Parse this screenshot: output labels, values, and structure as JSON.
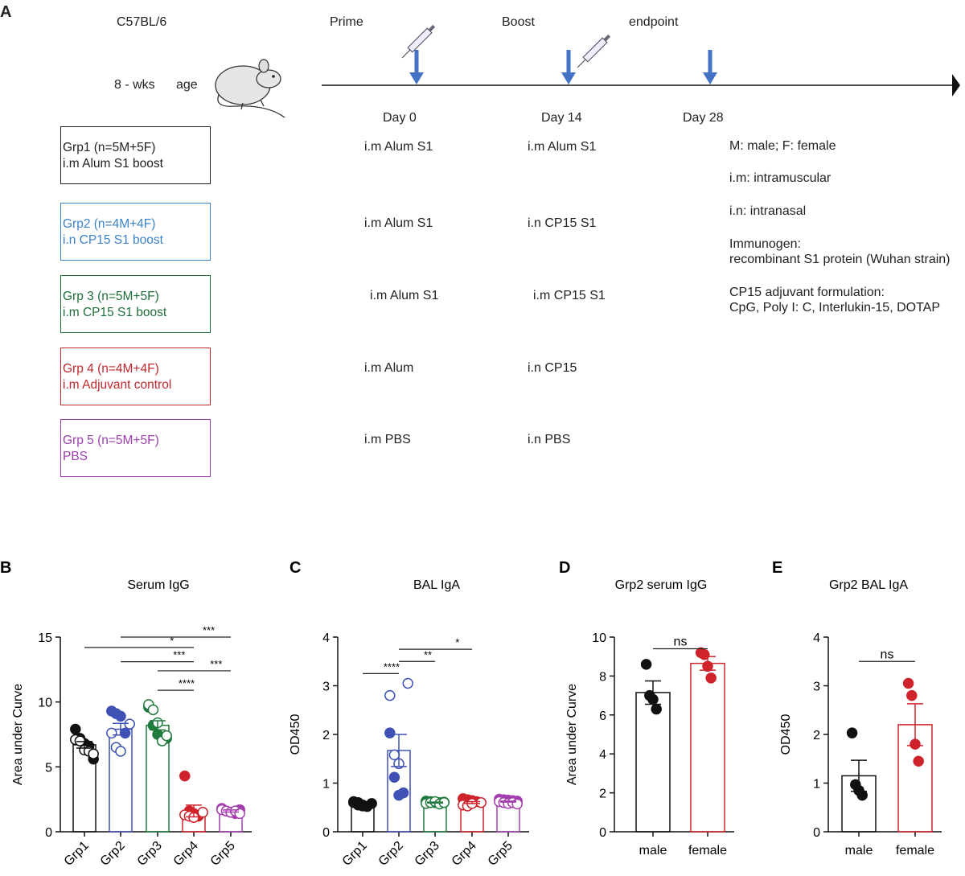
{
  "panel_a": {
    "letter": "A",
    "strain": "C57BL/6",
    "age": "8 - wks",
    "age_unit": "age",
    "prime": "Prime",
    "boost": "Boost",
    "endpoint": "endpoint",
    "days": [
      "Day 0",
      "Day 14",
      "Day 28"
    ],
    "groups": [
      {
        "title": "Grp1 (n=5M+5F)",
        "desc": "i.m Alum S1 boost",
        "prime": "i.m Alum S1",
        "boost": "i.m Alum S1",
        "color": "#222222"
      },
      {
        "title": "Grp2 (n=4M+4F)",
        "desc": "i.n CP15 S1 boost",
        "prime": "i.m Alum S1",
        "boost": "i.n CP15 S1",
        "color": "#3b82c8"
      },
      {
        "title": "Grp 3 (n=5M+5F)",
        "desc": "i.m CP15 S1 boost",
        "prime": "i.m Alum S1",
        "boost": "i.m CP15 S1",
        "color": "#1f6e3a"
      },
      {
        "title": "Grp 4 (n=4M+4F)",
        "desc": "i.m Adjuvant control",
        "prime": "i.m Alum",
        "boost": "i.n CP15",
        "color": "#c0282d"
      },
      {
        "title": "Grp 5 (n=5M+5F)",
        "desc": "PBS",
        "prime": "i.m PBS",
        "boost": "i.n PBS",
        "color": "#9b3fae"
      }
    ],
    "legend": {
      "sex": "M: male; F: female",
      "im": "i.m: intramuscular",
      "in": "i.n: intranasal",
      "immunogen_title": "Immunogen:",
      "immunogen": "recombinant S1 protein (Wuhan strain)",
      "adjuvant_title": "CP15 adjuvant formulation:",
      "adjuvant": "CpG, Poly I: C, Interlukin-15, DOTAP"
    },
    "arrow_color": "#4472c4"
  },
  "chart_data": [
    {
      "letter": "B",
      "type": "bar",
      "title": "Serum IgG",
      "ylabel": "Area under Curve",
      "ylim": [
        0,
        15
      ],
      "yticks": [
        0,
        5,
        10,
        15
      ],
      "categories": [
        "Grp1",
        "Grp2",
        "Grp3",
        "Grp4",
        "Grp5"
      ],
      "groups": [
        {
          "mean": 6.7,
          "sem": 0.25,
          "color": "#111111",
          "filled": [
            7.9,
            7.2,
            6.8,
            6.6,
            5.6
          ],
          "open": [
            7.1,
            7.0,
            6.3,
            6.2,
            6.0
          ]
        },
        {
          "mean": 7.9,
          "sem": 0.45,
          "color": "#3f51b5",
          "filled": [
            9.3,
            9.1,
            8.9,
            7.6
          ],
          "open": [
            8.3,
            7.6,
            6.5,
            6.2
          ]
        },
        {
          "mean": 8.2,
          "sem": 0.35,
          "color": "#1f7a3e",
          "filled": [
            9.6,
            8.2,
            7.5,
            7.2,
            7.2
          ],
          "open": [
            9.8,
            9.4,
            8.4,
            7.0,
            7.4
          ]
        },
        {
          "mean": 1.6,
          "sem": 0.45,
          "color": "#d0222a",
          "filled": [
            4.3,
            1.6,
            1.4,
            1.2
          ],
          "open": [
            1.5,
            1.3,
            1.2,
            1.1
          ]
        },
        {
          "mean": 1.6,
          "sem": 0.08,
          "color": "#a43fae",
          "filled": [
            1.8,
            1.6,
            1.5,
            1.4,
            1.7
          ],
          "open": [
            1.7,
            1.6,
            1.5,
            1.6,
            1.4
          ]
        }
      ],
      "significance": [
        {
          "from": 1,
          "to": 4,
          "y": 15.0,
          "label": "***"
        },
        {
          "from": 0,
          "to": 3,
          "y": 14.2,
          "label": "*"
        },
        {
          "from": 1,
          "to": 3,
          "y": 13.1,
          "label": "***"
        },
        {
          "from": 2,
          "to": 4,
          "y": 12.4,
          "label": "***"
        },
        {
          "from": 2,
          "to": 3,
          "y": 10.9,
          "label": "****"
        }
      ]
    },
    {
      "letter": "C",
      "type": "bar",
      "title": "BAL IgA",
      "ylabel": "OD450",
      "ylim": [
        0,
        4
      ],
      "yticks": [
        0,
        1,
        2,
        3,
        4
      ],
      "categories": [
        "Grp1",
        "Grp2",
        "Grp3",
        "Grp4",
        "Grp5"
      ],
      "groups": [
        {
          "mean": 0.57,
          "sem": 0.02,
          "color": "#111111",
          "filled": [
            0.62,
            0.6,
            0.55,
            0.52,
            0.58,
            0.6,
            0.55,
            0.53
          ],
          "open": []
        },
        {
          "mean": 1.67,
          "sem": 0.33,
          "color": "#3f51b5",
          "filled": [
            2.03,
            1.12,
            0.75,
            0.8
          ],
          "open": [
            3.05,
            2.8,
            1.58,
            1.4
          ]
        },
        {
          "mean": 0.6,
          "sem": 0.01,
          "color": "#1f7a3e",
          "filled": [
            0.63,
            0.62,
            0.6,
            0.6,
            0.61
          ],
          "open": [
            0.58,
            0.6,
            0.62,
            0.57,
            0.6
          ]
        },
        {
          "mean": 0.6,
          "sem": 0.02,
          "color": "#d0222a",
          "filled": [
            0.68,
            0.66,
            0.64,
            0.62
          ],
          "open": [
            0.6,
            0.55,
            0.53,
            0.58
          ]
        },
        {
          "mean": 0.62,
          "sem": 0.01,
          "color": "#a43fae",
          "filled": [
            0.67,
            0.66,
            0.65,
            0.64,
            0.63
          ],
          "open": [
            0.62,
            0.6,
            0.58,
            0.6,
            0.57
          ]
        }
      ],
      "significance": [
        {
          "from": 1,
          "to": 3,
          "y": 3.75,
          "label": "*"
        },
        {
          "from": 1,
          "to": 2,
          "y": 3.5,
          "label": "**"
        },
        {
          "from": 0,
          "to": 1,
          "y": 3.25,
          "label": "****"
        }
      ]
    },
    {
      "letter": "D",
      "type": "bar",
      "title": "Grp2 serum IgG",
      "ylabel": "Area under Curve",
      "ylim": [
        0,
        10
      ],
      "yticks": [
        0,
        2,
        4,
        6,
        8,
        10
      ],
      "categories": [
        "male",
        "female"
      ],
      "groups": [
        {
          "mean": 7.15,
          "sem": 0.6,
          "color": "#111111",
          "filled": [
            8.6,
            7.0,
            6.8,
            6.3
          ],
          "open": []
        },
        {
          "mean": 8.65,
          "sem": 0.35,
          "color": "#d0222a",
          "filled": [
            9.2,
            9.1,
            8.5,
            7.9
          ],
          "open": []
        }
      ],
      "significance": [
        {
          "from": 0,
          "to": 1,
          "y": 9.4,
          "label": "ns"
        }
      ]
    },
    {
      "letter": "E",
      "type": "bar",
      "title": "Grp2 BAL IgA",
      "ylabel": "OD450",
      "ylim": [
        0,
        4
      ],
      "yticks": [
        0,
        1,
        2,
        3,
        4
      ],
      "categories": [
        "male",
        "female"
      ],
      "groups": [
        {
          "mean": 1.15,
          "sem": 0.32,
          "color": "#111111",
          "filled": [
            2.03,
            0.97,
            0.85,
            0.75
          ],
          "open": []
        },
        {
          "mean": 2.2,
          "sem": 0.43,
          "color": "#d0222a",
          "filled": [
            3.05,
            2.8,
            1.8,
            1.45
          ],
          "open": []
        }
      ],
      "significance": [
        {
          "from": 0,
          "to": 1,
          "y": 3.5,
          "label": "ns"
        }
      ]
    }
  ]
}
